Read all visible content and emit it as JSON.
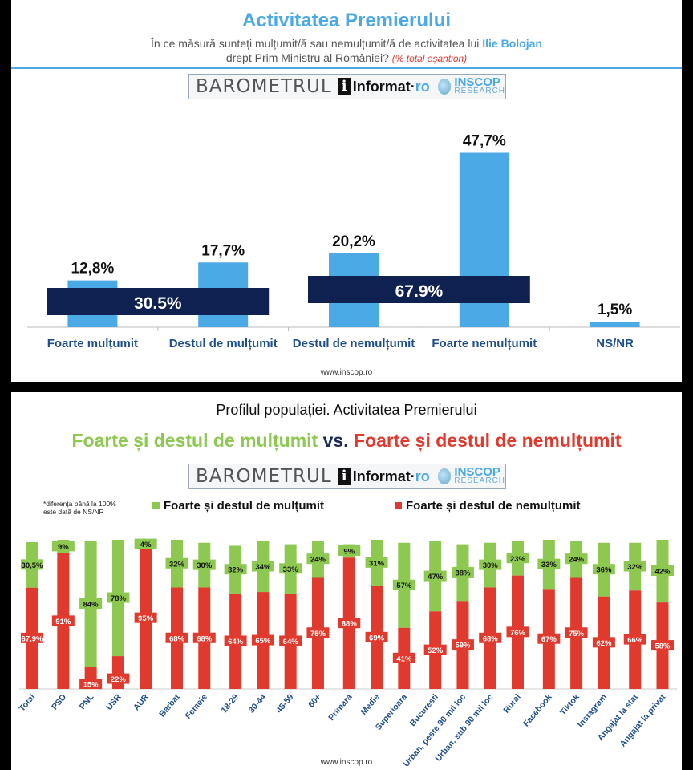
{
  "top": {
    "title": "Activitatea Premierului",
    "question_pre": "În ce măsură sunteți mulțumit/ă sau nemulțumit/ă de activitatea lui ",
    "question_name": "Ilie Bolojan",
    "question_line2": "drept Prim Ministru al României?",
    "question_note": "(% total eșantion)",
    "website": "www.inscop.ro"
  },
  "logo": {
    "barometrul": "BAROMETRUL",
    "informat_a": "Informat",
    "informat_b": "ro",
    "inscop": "INSCOP",
    "research": "RESEARCH"
  },
  "bottom": {
    "title": "Profilul populației. Activitatea Premierului",
    "headline_green": "Foarte și destul de mulțumit",
    "headline_vs": "vs.",
    "headline_red": "Foarte și destul de nemulțumit",
    "note_line1": "*diferența până la 100%",
    "note_line2": "este dată de NS/NR",
    "legend_green": "Foarte și destul de mulțumit",
    "legend_red": "Foarte și destul de nemulțumit",
    "website": "www.inscop.ro"
  },
  "colors": {
    "blue": "#4BA9E6",
    "navy": "#0E2150",
    "green": "#8DC850",
    "red": "#E03A2E"
  },
  "chart_data": [
    {
      "type": "bar",
      "categories": [
        "Foarte mulțumit",
        "Destul de mulțumit",
        "Destul de nemulțumit",
        "Foarte nemulțumit",
        "NS/NR"
      ],
      "values": [
        12.8,
        17.7,
        20.2,
        47.7,
        1.5
      ],
      "labels": [
        "12,8%",
        "17,7%",
        "20,2%",
        "47,7%",
        "1,5%"
      ],
      "groups": [
        {
          "label": "30.5%",
          "from": 0,
          "to": 1
        },
        {
          "label": "67.9%",
          "from": 2,
          "to": 3
        }
      ],
      "ylim": [
        0,
        50
      ]
    },
    {
      "type": "bar",
      "stacked": true,
      "groups": [
        {
          "items": [
            {
              "cat": "Total",
              "red": 67.9,
              "green": 30.5,
              "red_label": "67,9%",
              "green_label": "30,5%"
            }
          ]
        },
        {
          "items": [
            {
              "cat": "PSD",
              "red": 91,
              "green": 9,
              "red_label": "91%",
              "green_label": "9%"
            },
            {
              "cat": "PNL",
              "red": 15,
              "green": 84,
              "red_label": "15%",
              "green_label": "84%"
            },
            {
              "cat": "USR",
              "red": 22,
              "green": 78,
              "red_label": "22%",
              "green_label": "78%"
            },
            {
              "cat": "AUR",
              "red": 95,
              "green": 4,
              "red_label": "95%",
              "green_label": "4%"
            }
          ]
        },
        {
          "items": [
            {
              "cat": "Barbat",
              "red": 68,
              "green": 32,
              "red_label": "68%",
              "green_label": "32%"
            },
            {
              "cat": "Femeie",
              "red": 68,
              "green": 30,
              "red_label": "68%",
              "green_label": "30%"
            }
          ]
        },
        {
          "items": [
            {
              "cat": "18-29",
              "red": 64,
              "green": 32,
              "red_label": "64%",
              "green_label": "32%"
            },
            {
              "cat": "30-44",
              "red": 65,
              "green": 34,
              "red_label": "65%",
              "green_label": "34%"
            },
            {
              "cat": "45-59",
              "red": 64,
              "green": 33,
              "red_label": "64%",
              "green_label": "33%"
            },
            {
              "cat": "60+",
              "red": 75,
              "green": 24,
              "red_label": "75%",
              "green_label": "24%"
            }
          ]
        },
        {
          "items": [
            {
              "cat": "Primara",
              "red": 88,
              "green": 9,
              "red_label": "88%",
              "green_label": "9%"
            },
            {
              "cat": "Medie",
              "red": 69,
              "green": 31,
              "red_label": "69%",
              "green_label": "31%"
            },
            {
              "cat": "Superioara",
              "red": 41,
              "green": 57,
              "red_label": "41%",
              "green_label": "57%"
            }
          ]
        },
        {
          "items": [
            {
              "cat": "Bucuresti",
              "red": 52,
              "green": 47,
              "red_label": "52%",
              "green_label": "47%"
            },
            {
              "cat": "Urban, peste 90 mii loc",
              "red": 59,
              "green": 38,
              "red_label": "59%",
              "green_label": "38%"
            },
            {
              "cat": "Urban, sub 90 mii loc",
              "red": 68,
              "green": 30,
              "red_label": "68%",
              "green_label": "30%"
            },
            {
              "cat": "Rural",
              "red": 76,
              "green": 23,
              "red_label": "76%",
              "green_label": "23%"
            }
          ]
        },
        {
          "items": [
            {
              "cat": "Facebook",
              "red": 67,
              "green": 33,
              "red_label": "67%",
              "green_label": "33%"
            },
            {
              "cat": "Tiktok",
              "red": 75,
              "green": 24,
              "red_label": "75%",
              "green_label": "24%"
            },
            {
              "cat": "Instagram",
              "red": 62,
              "green": 36,
              "red_label": "62%",
              "green_label": "36%"
            }
          ]
        },
        {
          "items": [
            {
              "cat": "Angajat la stat",
              "red": 66,
              "green": 32,
              "red_label": "66%",
              "green_label": "32%"
            },
            {
              "cat": "Angajat la privat",
              "red": 58,
              "green": 42,
              "red_label": "58%",
              "green_label": "42%"
            }
          ]
        }
      ],
      "legend": "top",
      "ylim": [
        0,
        100
      ]
    }
  ]
}
